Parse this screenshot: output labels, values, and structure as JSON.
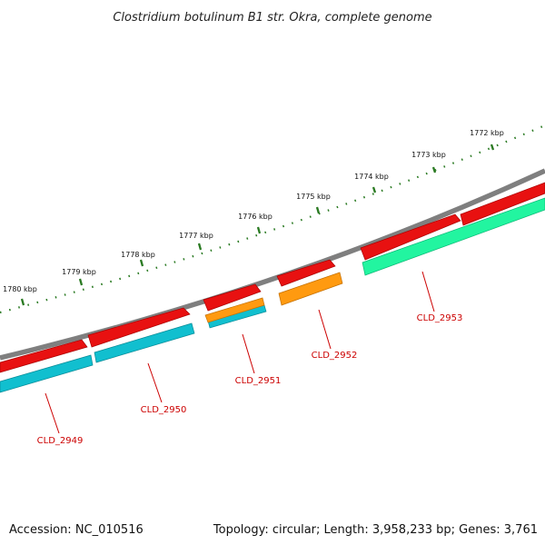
{
  "title": "Clostridium botulinum B1 str. Okra, complete genome",
  "footer": {
    "accession": "Accession: NC_010516",
    "topology": "Topology: circular; Length: 3,958,233 bp; Genes: 3,761"
  },
  "scale": {
    "unit": "kbp",
    "labels": [
      "1772 kbp",
      "1773 kbp",
      "1774 kbp",
      "1775 kbp",
      "1776 kbp",
      "1777 kbp",
      "1778 kbp",
      "1779 kbp",
      "1780 kbp"
    ]
  },
  "colors": {
    "backbone": "#7f7f7f",
    "cds": "#ee1111",
    "gene_cyan": "#11bfcf",
    "gene_orange": "#ff9a10",
    "gene_green": "#22f5a0",
    "tick": "#2a7a22",
    "gene_label": "#cc0000"
  },
  "genes": [
    {
      "name": "CLD_2949",
      "type": "gene_cyan"
    },
    {
      "name": "CLD_2950",
      "type": "gene_cyan"
    },
    {
      "name": "CLD_2951",
      "type": "gene_cyan"
    },
    {
      "name": "CLD_2952",
      "type": "gene_orange"
    },
    {
      "name": "CLD_2953",
      "type": "gene_green"
    }
  ]
}
